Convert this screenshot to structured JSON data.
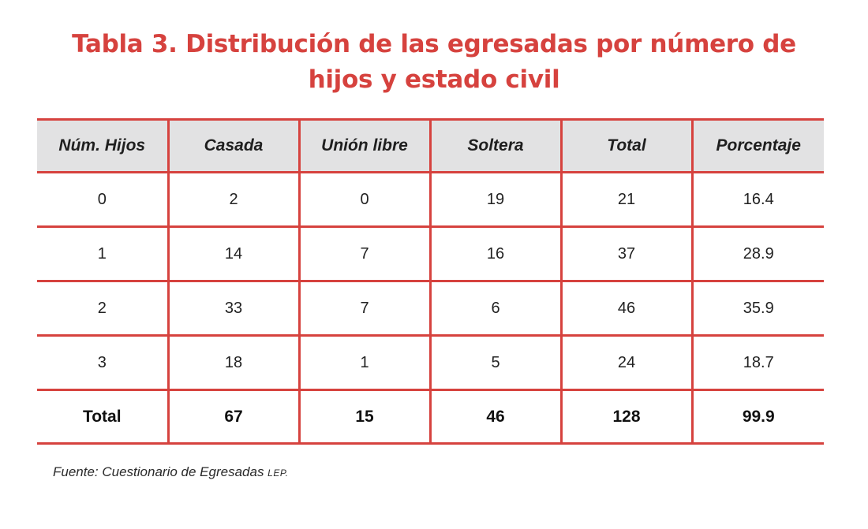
{
  "title": {
    "line1": "Tabla 3. Distribución de las egresadas por número de",
    "line2": "hijos y estado civil"
  },
  "table": {
    "headers": [
      "Núm. Hijos",
      "Casada",
      "Unión libre",
      "Soltera",
      "Total",
      "Porcentaje"
    ],
    "rows": [
      [
        "0",
        "2",
        "0",
        "19",
        "21",
        "16.4"
      ],
      [
        "1",
        "14",
        "7",
        "16",
        "37",
        "28.9"
      ],
      [
        "2",
        "33",
        "7",
        "6",
        "46",
        "35.9"
      ],
      [
        "3",
        "18",
        "1",
        "5",
        "24",
        "18.7"
      ]
    ],
    "total_row": [
      "Total",
      "67",
      "15",
      "46",
      "128",
      "99.9"
    ]
  },
  "source": {
    "text": "Fuente: Cuestionario de Egresadas ",
    "abbr": "LEP."
  },
  "colors": {
    "accent": "#d6423e",
    "header_bg": "#e2e2e3"
  }
}
